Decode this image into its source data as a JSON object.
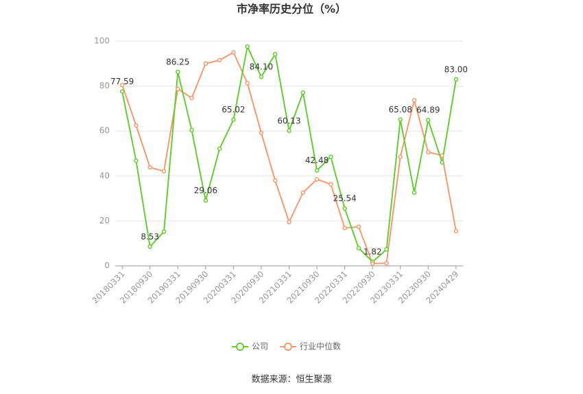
{
  "chart_data": {
    "type": "line",
    "title": "市净率历史分位（%）",
    "categories": [
      "20180331",
      null,
      "20180930",
      null,
      "20190331",
      null,
      "20190930",
      null,
      "20200331",
      null,
      "20200930",
      null,
      "20210331",
      null,
      "20210930",
      null,
      "20220331",
      null,
      "20220930",
      null,
      "20230331",
      null,
      "20230930",
      null,
      "20240429"
    ],
    "series": [
      {
        "name": "公司",
        "color": "#66cc33",
        "values": [
          77.59,
          46.8,
          8.53,
          15.2,
          86.25,
          60.4,
          29.06,
          52.1,
          65.02,
          97.6,
          84.1,
          94.2,
          60.13,
          77.1,
          42.48,
          48.5,
          25.54,
          7.9,
          1.82,
          7.3,
          65.08,
          32.6,
          64.89,
          46.0,
          83.0
        ],
        "value_labels": [
          "77.59",
          null,
          "8.53",
          null,
          "86.25",
          null,
          "29.06",
          null,
          "65.02",
          null,
          "84.10",
          null,
          "60.13",
          null,
          "42.48",
          null,
          "25.54",
          null,
          "1.82",
          null,
          "65.08",
          null,
          "64.89",
          null,
          "83.00"
        ]
      },
      {
        "name": "行业中位数",
        "color": "#f59a6e",
        "values": [
          80.5,
          62.5,
          43.8,
          42.1,
          78.7,
          74.7,
          90.0,
          91.5,
          95.0,
          81.3,
          59.2,
          38.0,
          19.5,
          32.6,
          38.5,
          36.3,
          16.8,
          17.4,
          1.0,
          1.2,
          48.5,
          73.7,
          50.6,
          49.1,
          15.5
        ]
      }
    ],
    "ylim": [
      0,
      100
    ],
    "yticks": [
      0,
      20,
      40,
      60,
      80,
      100
    ],
    "grid": true,
    "source": "数据来源：恒生聚源"
  }
}
